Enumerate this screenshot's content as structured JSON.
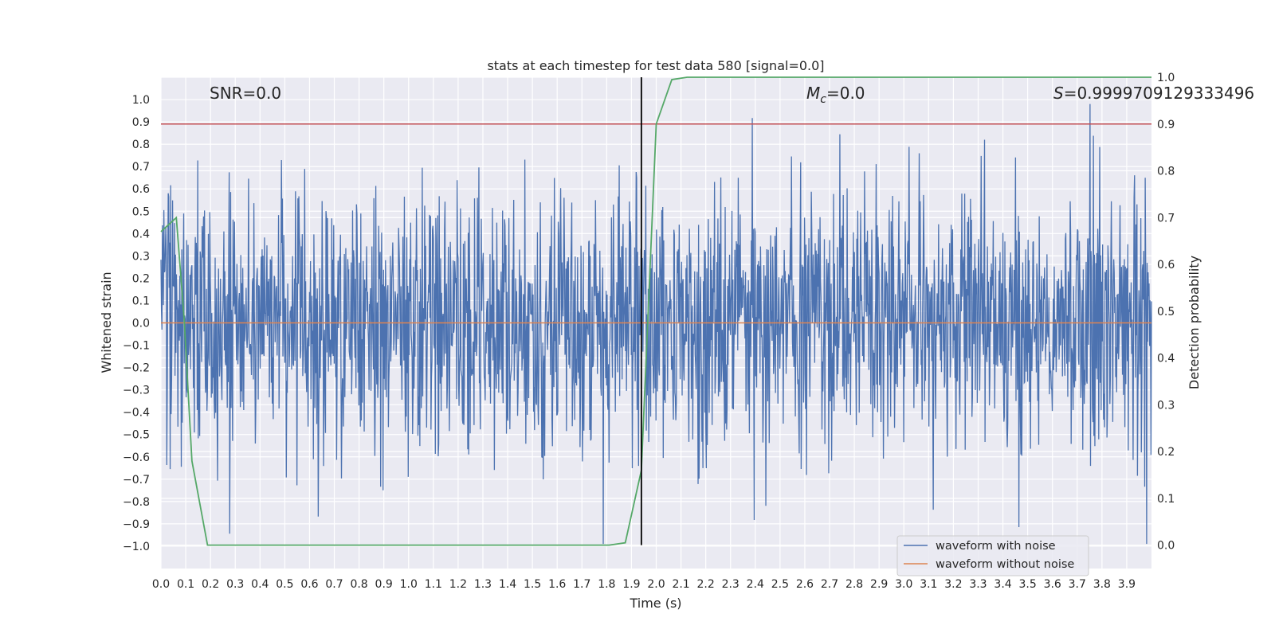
{
  "chart_data": {
    "type": "line",
    "title": "stats at each timestep for test data 580 [signal=0.0]",
    "xlabel": "Time (s)",
    "ylabel": "Whitened strain",
    "y2label": "Detection probability",
    "xlim": [
      0.0,
      4.0
    ],
    "ylim": [
      -1.1,
      1.1
    ],
    "y2lim": [
      -0.05,
      1.0
    ],
    "x_ticks": [
      0.0,
      0.1,
      0.2,
      0.3,
      0.4,
      0.5,
      0.6,
      0.7,
      0.8,
      0.9,
      1.0,
      1.1,
      1.2,
      1.3,
      1.4,
      1.5,
      1.6,
      1.7,
      1.8,
      1.9,
      2.0,
      2.1,
      2.2,
      2.3,
      2.4,
      2.5,
      2.6,
      2.7,
      2.8,
      2.9,
      3.0,
      3.1,
      3.2,
      3.3,
      3.4,
      3.5,
      3.6,
      3.7,
      3.8,
      3.9
    ],
    "y_ticks": [
      1.0,
      0.9,
      0.8,
      0.7,
      0.6,
      0.5,
      0.4,
      0.3,
      0.2,
      0.1,
      0.0,
      -0.1,
      -0.2,
      -0.3,
      -0.4,
      -0.5,
      -0.6,
      -0.7,
      -0.8,
      -0.9,
      -1.0
    ],
    "y2_ticks": [
      1.0,
      0.9,
      0.8,
      0.7,
      0.6,
      0.5,
      0.4,
      0.3,
      0.2,
      0.1,
      0.0
    ],
    "grid": true,
    "legend_placement": "lower-right",
    "annotations": {
      "snr": "SNR=0.0",
      "mc_symbol": "M",
      "mc_subscript": "c",
      "mc_value": "=0.0",
      "s_symbol": "S",
      "s_value": "=0.9999709129333496"
    },
    "threshold_line": {
      "axis": "y2",
      "value": 0.9,
      "color": "#c44e52"
    },
    "vertical_line": {
      "x": 1.94,
      "color": "#000000"
    },
    "series": [
      {
        "name": "waveform with noise",
        "axis": "y",
        "color": "#4c72b0",
        "generated": "gaussian-noise",
        "n_samples": 2048,
        "noise_sigma": 0.3
      },
      {
        "name": "waveform without noise",
        "axis": "y",
        "color": "#dd8452",
        "x": [
          0.0,
          4.0
        ],
        "y": [
          0.0,
          0.0
        ]
      },
      {
        "name": "",
        "axis": "y2",
        "color": "#55a868",
        "x": [
          0.0,
          0.062,
          0.094,
          0.125,
          0.188,
          0.25,
          1.81,
          1.875,
          1.94,
          2.0,
          2.063,
          2.125,
          4.0
        ],
        "y": [
          0.67,
          0.7,
          0.48,
          0.18,
          0.0,
          0.0,
          0.0,
          0.005,
          0.16,
          0.9,
          0.995,
          1.0,
          1.0
        ]
      }
    ]
  }
}
